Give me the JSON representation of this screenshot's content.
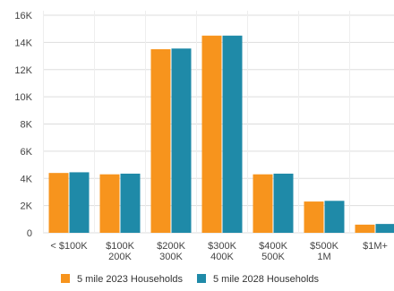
{
  "chart_data": {
    "type": "bar",
    "categories": [
      [
        "< $100K"
      ],
      [
        "$100K",
        "200K"
      ],
      [
        "$200K",
        "300K"
      ],
      [
        "$300K",
        "400K"
      ],
      [
        "$400K",
        "500K"
      ],
      [
        "$500K",
        "1M"
      ],
      [
        "$1M+"
      ]
    ],
    "series": [
      {
        "name": "5 mile 2023 Households",
        "color": "#f7941d",
        "values": [
          4400,
          4300,
          13500,
          14500,
          4300,
          2300,
          600
        ]
      },
      {
        "name": "5 mile 2028 Households",
        "color": "#1f8aa8",
        "values": [
          4450,
          4350,
          13550,
          14500,
          4350,
          2350,
          650
        ]
      }
    ],
    "y_ticks": [
      "0",
      "2K",
      "4K",
      "6K",
      "8K",
      "10K",
      "12K",
      "14K",
      "16K"
    ],
    "ylim": [
      0,
      16000
    ],
    "grid": true,
    "legend_position": "bottom"
  }
}
